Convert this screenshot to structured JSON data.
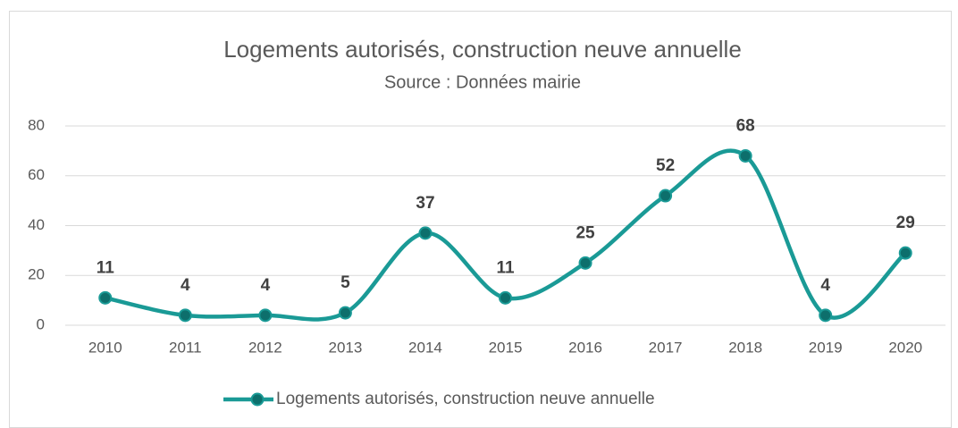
{
  "chart_data": {
    "type": "line",
    "title": "Logements autorisés, construction neuve annuelle",
    "subtitle": "Source : Données mairie",
    "categories": [
      "2010",
      "2011",
      "2012",
      "2013",
      "2014",
      "2015",
      "2016",
      "2017",
      "2018",
      "2019",
      "2020"
    ],
    "series": [
      {
        "name": "Logements autorisés, construction neuve annuelle",
        "color": "#1a9a96",
        "values": [
          11,
          4,
          4,
          5,
          37,
          11,
          25,
          52,
          68,
          4,
          29
        ]
      }
    ],
    "ylim": [
      0,
      80
    ],
    "yticks": [
      0,
      20,
      40,
      60,
      80
    ],
    "grid": true,
    "smooth": true,
    "legend": "bottom"
  }
}
